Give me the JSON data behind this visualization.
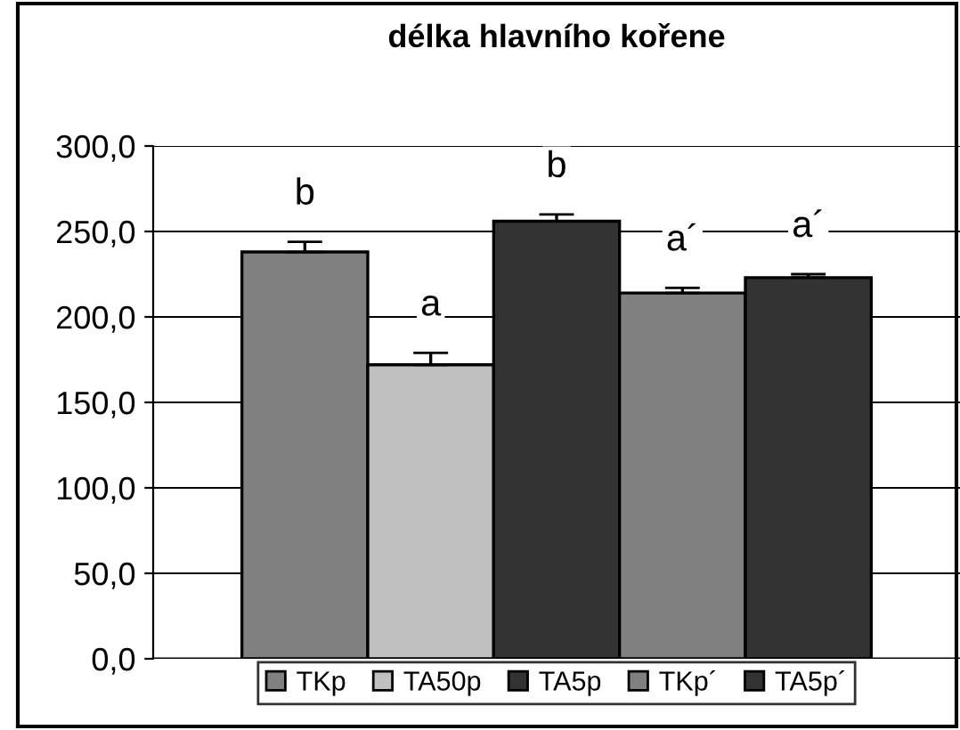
{
  "chart_data": {
    "type": "bar",
    "title": "délka hlavního kořene",
    "categories": [
      null
    ],
    "series": [
      {
        "name": "TKp",
        "color": "#808080",
        "values": [
          238
        ],
        "errors": [
          6
        ]
      },
      {
        "name": "TA50p",
        "color": "#c0c0c0",
        "values": [
          172
        ],
        "errors": [
          7
        ]
      },
      {
        "name": "TA5p",
        "color": "#333333",
        "values": [
          256
        ],
        "errors": [
          4
        ]
      },
      {
        "name": "TKp´",
        "color": "#808080",
        "values": [
          214
        ],
        "errors": [
          3
        ]
      },
      {
        "name": "TA5p´",
        "color": "#333333",
        "values": [
          223
        ],
        "errors": [
          2
        ]
      }
    ],
    "annotations": [
      "b",
      "a",
      "b",
      "a´",
      "a´"
    ],
    "ylim": [
      0,
      300
    ],
    "yticks": [
      {
        "value": 0,
        "label": "0,0"
      },
      {
        "value": 50,
        "label": "50,0"
      },
      {
        "value": 100,
        "label": "100,0"
      },
      {
        "value": 150,
        "label": "150,0"
      },
      {
        "value": 200,
        "label": "200,0"
      },
      {
        "value": 250,
        "label": "250,0"
      },
      {
        "value": 300,
        "label": "300,0"
      }
    ],
    "grid": "y",
    "legend": "bottom"
  }
}
